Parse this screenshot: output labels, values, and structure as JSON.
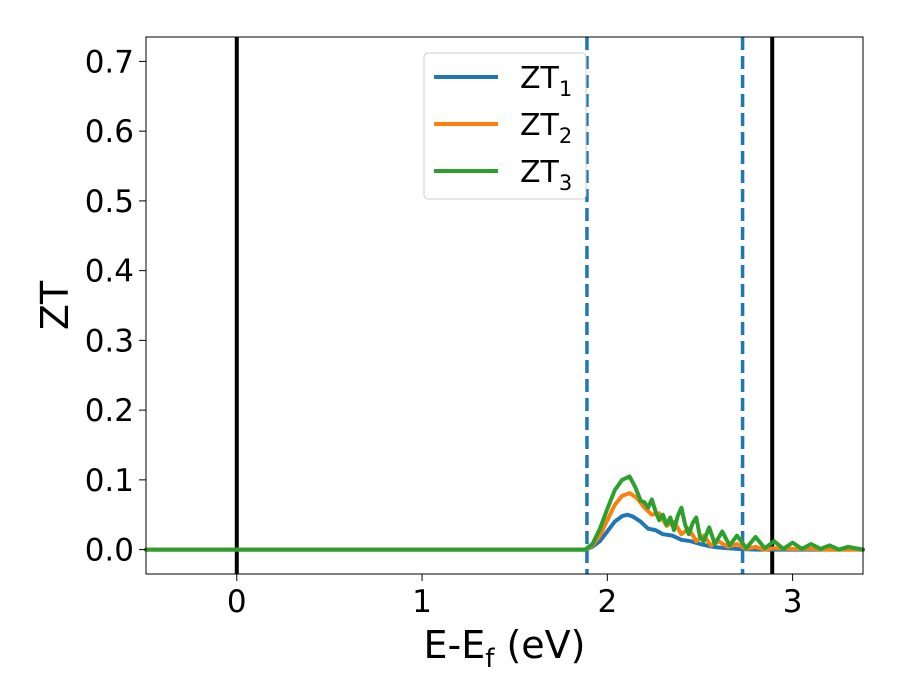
{
  "chart_data": {
    "type": "line",
    "title": "",
    "xlabel": "E-E",
    "xlabel_sub": "f",
    "xlabel_unit": " (eV)",
    "ylabel": "ZT",
    "xlim": [
      -0.49,
      3.38
    ],
    "ylim": [
      -0.035,
      0.735
    ],
    "x_ticks": [
      0,
      1,
      2,
      3
    ],
    "y_ticks": [
      0.0,
      0.1,
      0.2,
      0.3,
      0.4,
      0.5,
      0.6,
      0.7
    ],
    "x_tick_labels": [
      "0",
      "1",
      "2",
      "3"
    ],
    "y_tick_labels": [
      "0.0",
      "0.1",
      "0.2",
      "0.3",
      "0.4",
      "0.5",
      "0.6",
      "0.7"
    ],
    "grid": false,
    "legend_position": "top-center",
    "vertical_lines": [
      {
        "x": 0.0,
        "style": "solid",
        "color": "#000000"
      },
      {
        "x": 2.89,
        "style": "solid",
        "color": "#000000"
      },
      {
        "x": 1.89,
        "style": "dashed",
        "color": "#1f77b4"
      },
      {
        "x": 2.73,
        "style": "dashed",
        "color": "#1f77b4"
      }
    ],
    "series": [
      {
        "name": "ZT",
        "name_sub": "1",
        "color": "#1f77b4",
        "x": [
          -0.49,
          1.88,
          1.92,
          1.96,
          2.0,
          2.04,
          2.08,
          2.11,
          2.14,
          2.18,
          2.22,
          2.26,
          2.3,
          2.35,
          2.4,
          2.45,
          2.5,
          2.55,
          2.6,
          2.7,
          2.8,
          3.0,
          3.38
        ],
        "y": [
          0.0,
          0.0,
          0.004,
          0.012,
          0.026,
          0.04,
          0.048,
          0.05,
          0.047,
          0.04,
          0.03,
          0.028,
          0.022,
          0.02,
          0.014,
          0.012,
          0.008,
          0.005,
          0.003,
          0.001,
          0.0,
          0.0,
          0.0
        ]
      },
      {
        "name": "ZT",
        "name_sub": "2",
        "color": "#ff7f0e",
        "x": [
          -0.49,
          1.88,
          1.92,
          1.96,
          2.0,
          2.04,
          2.08,
          2.12,
          2.16,
          2.2,
          2.24,
          2.28,
          2.32,
          2.36,
          2.4,
          2.44,
          2.48,
          2.52,
          2.56,
          2.6,
          2.65,
          2.7,
          2.75,
          2.8,
          2.85,
          2.9,
          3.0,
          3.1,
          3.2,
          3.38
        ],
        "y": [
          0.0,
          0.0,
          0.006,
          0.02,
          0.042,
          0.064,
          0.077,
          0.081,
          0.074,
          0.06,
          0.05,
          0.052,
          0.034,
          0.04,
          0.022,
          0.03,
          0.012,
          0.02,
          0.006,
          0.012,
          0.004,
          0.008,
          0.001,
          0.004,
          0.0,
          0.002,
          0.001,
          0.001,
          0.0,
          0.0
        ]
      },
      {
        "name": "ZT",
        "name_sub": "3",
        "color": "#2ca02c",
        "x": [
          -0.49,
          1.88,
          1.92,
          1.96,
          2.0,
          2.04,
          2.08,
          2.12,
          2.15,
          2.18,
          2.2,
          2.22,
          2.24,
          2.26,
          2.28,
          2.3,
          2.32,
          2.34,
          2.36,
          2.38,
          2.4,
          2.42,
          2.44,
          2.46,
          2.48,
          2.5,
          2.52,
          2.55,
          2.58,
          2.62,
          2.66,
          2.7,
          2.75,
          2.8,
          2.85,
          2.9,
          2.95,
          3.0,
          3.05,
          3.1,
          3.15,
          3.2,
          3.25,
          3.3,
          3.38
        ],
        "y": [
          0.0,
          0.0,
          0.008,
          0.03,
          0.058,
          0.085,
          0.1,
          0.105,
          0.09,
          0.07,
          0.068,
          0.06,
          0.072,
          0.055,
          0.042,
          0.05,
          0.036,
          0.046,
          0.028,
          0.048,
          0.06,
          0.036,
          0.022,
          0.038,
          0.046,
          0.018,
          0.012,
          0.032,
          0.008,
          0.026,
          0.006,
          0.02,
          0.002,
          0.018,
          0.002,
          0.012,
          0.001,
          0.01,
          0.001,
          0.008,
          0.001,
          0.006,
          0.0,
          0.004,
          0.0
        ]
      }
    ]
  }
}
